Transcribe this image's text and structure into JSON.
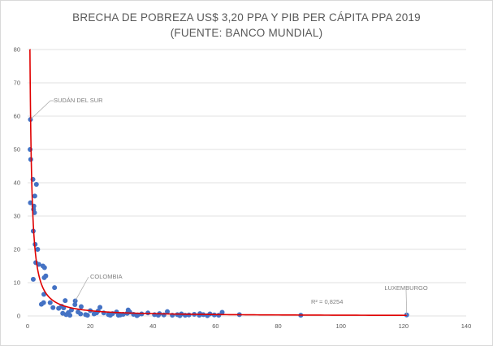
{
  "chart_data": {
    "type": "scatter",
    "title": "BRECHA DE POBREZA US$ 3,20 PPA Y PIB PER CÁPITA PPA 2019",
    "subtitle": "(FUENTE: BANCO MUNDIAL)",
    "xlabel": "",
    "ylabel": "",
    "xlim": [
      0,
      140
    ],
    "ylim": [
      0,
      80
    ],
    "x_ticks": [
      0,
      20,
      40,
      60,
      80,
      100,
      120,
      140
    ],
    "y_ticks": [
      0,
      10,
      20,
      30,
      40,
      50,
      60,
      70,
      80
    ],
    "grid": "horizontal",
    "marker_color": "#4472c4",
    "trend_color": "#e00000",
    "trendline": {
      "type": "power",
      "r2_label": "R² = 0,8254",
      "x_start": 0.7,
      "x_end": 121
    },
    "annotations": [
      {
        "text": "SUDÁN DEL SUR",
        "x": 0.9,
        "y": 59
      },
      {
        "text": "COLOMBIA",
        "x": 15.2,
        "y": 4.5
      },
      {
        "text": "LUXEMBURGO",
        "x": 121,
        "y": 0.3
      }
    ],
    "points": [
      [
        0.9,
        59
      ],
      [
        0.8,
        50
      ],
      [
        1.0,
        47
      ],
      [
        0.9,
        34
      ],
      [
        1.7,
        41
      ],
      [
        2.8,
        39.5
      ],
      [
        2.3,
        36
      ],
      [
        2.0,
        33
      ],
      [
        1.9,
        32
      ],
      [
        2.2,
        31
      ],
      [
        1.8,
        25.5
      ],
      [
        2.4,
        21.5
      ],
      [
        3.2,
        20
      ],
      [
        2.6,
        16
      ],
      [
        3.6,
        15.5
      ],
      [
        4.9,
        15
      ],
      [
        5.4,
        14.5
      ],
      [
        5.8,
        12
      ],
      [
        5.3,
        11.5
      ],
      [
        1.8,
        11
      ],
      [
        8.6,
        8.5
      ],
      [
        5.2,
        6.5
      ],
      [
        7.2,
        4
      ],
      [
        5.1,
        4
      ],
      [
        8.1,
        2.5
      ],
      [
        4.4,
        3.5
      ],
      [
        9.9,
        2.3
      ],
      [
        12.0,
        4.6
      ],
      [
        10.9,
        2.9
      ],
      [
        11.5,
        2.4
      ],
      [
        14.0,
        1.8
      ],
      [
        15.1,
        3.4
      ],
      [
        15.2,
        4.5
      ],
      [
        13.0,
        1.0
      ],
      [
        12.3,
        0.4
      ],
      [
        13.5,
        0.2
      ],
      [
        11.2,
        0.8
      ],
      [
        16.1,
        1.2
      ],
      [
        17.1,
        2.8
      ],
      [
        18.5,
        0.4
      ],
      [
        20.0,
        1.6
      ],
      [
        21.2,
        0.6
      ],
      [
        22.5,
        1.5
      ],
      [
        23.1,
        2.6
      ],
      [
        24.3,
        0.9
      ],
      [
        25.8,
        0.4
      ],
      [
        27.1,
        0.7
      ],
      [
        28.4,
        1.2
      ],
      [
        29.6,
        0.3
      ],
      [
        30.5,
        0.5
      ],
      [
        31.8,
        0.8
      ],
      [
        32.1,
        1.8
      ],
      [
        32.6,
        1.2
      ],
      [
        33.8,
        0.5
      ],
      [
        35.2,
        0.3
      ],
      [
        36.4,
        0.6
      ],
      [
        38.4,
        0.9
      ],
      [
        40.5,
        0.4
      ],
      [
        42.1,
        0.7
      ],
      [
        43.5,
        0.3
      ],
      [
        44.6,
        1.3
      ],
      [
        46.2,
        0.2
      ],
      [
        47.8,
        0.4
      ],
      [
        49.1,
        0.6
      ],
      [
        50.3,
        0.2
      ],
      [
        51.5,
        0.3
      ],
      [
        53.2,
        0.5
      ],
      [
        55.0,
        0.7
      ],
      [
        56.1,
        0.4
      ],
      [
        58.2,
        0.6
      ],
      [
        59.6,
        0.3
      ],
      [
        61.0,
        0.2
      ],
      [
        62.1,
        1.1
      ],
      [
        67.6,
        0.4
      ],
      [
        87.2,
        0.2
      ],
      [
        121.0,
        0.3
      ],
      [
        19.1,
        0.2
      ],
      [
        26.4,
        0.2
      ],
      [
        34.9,
        0.1
      ],
      [
        41.7,
        0.2
      ],
      [
        48.6,
        0.1
      ],
      [
        54.8,
        0.2
      ],
      [
        57.4,
        0.1
      ],
      [
        16.9,
        0.6
      ],
      [
        22.0,
        0.9
      ],
      [
        29.0,
        0.2
      ]
    ]
  }
}
